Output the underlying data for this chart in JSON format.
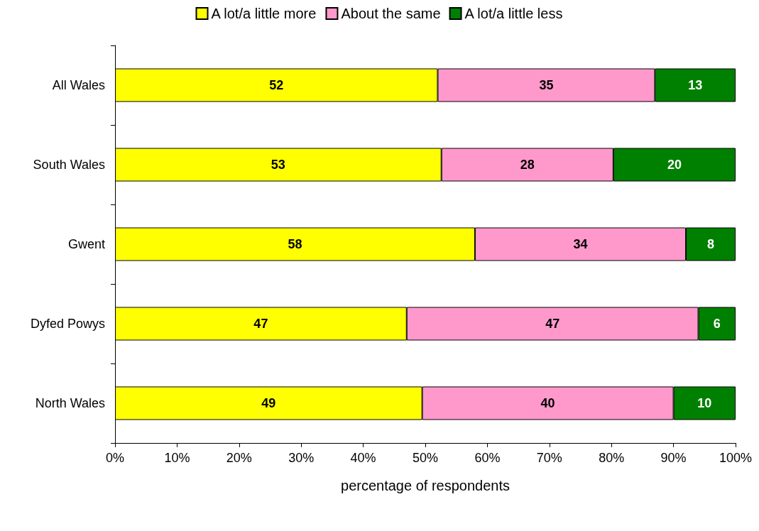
{
  "chart_data": {
    "type": "bar",
    "orientation": "horizontal",
    "stacked": true,
    "xlabel": "percentage of respondents",
    "categories": [
      "All Wales",
      "South Wales",
      "Gwent",
      "Dyfed Powys",
      "North Wales"
    ],
    "series": [
      {
        "name": "A lot/a little more",
        "color": "#ffff00",
        "values": [
          52,
          52.6,
          58,
          47,
          49.5
        ],
        "value_labels": [
          "52",
          "53",
          "58",
          "47",
          "49"
        ]
      },
      {
        "name": "About the same",
        "color": "#ff99cc",
        "values": [
          35,
          27.7,
          34,
          47,
          40.5
        ],
        "value_labels": [
          "35",
          "28",
          "34",
          "47",
          "40"
        ]
      },
      {
        "name": "A lot/a little less",
        "color": "#008000",
        "values": [
          13,
          19.7,
          8,
          6,
          10
        ],
        "value_labels": [
          "13",
          "20",
          "8",
          "6",
          "10"
        ]
      }
    ],
    "xlim": [
      0,
      100
    ],
    "xticks": [
      {
        "value": 0,
        "label": "0%"
      },
      {
        "value": 10,
        "label": "10%"
      },
      {
        "value": 20,
        "label": "20%"
      },
      {
        "value": 30,
        "label": "30%"
      },
      {
        "value": 40,
        "label": "40%"
      },
      {
        "value": 50,
        "label": "50%"
      },
      {
        "value": 60,
        "label": "60%"
      },
      {
        "value": 70,
        "label": "70%"
      },
      {
        "value": 80,
        "label": "80%"
      },
      {
        "value": 90,
        "label": "90%"
      },
      {
        "value": 100,
        "label": "100%"
      }
    ],
    "grid": false,
    "legend": "top"
  }
}
